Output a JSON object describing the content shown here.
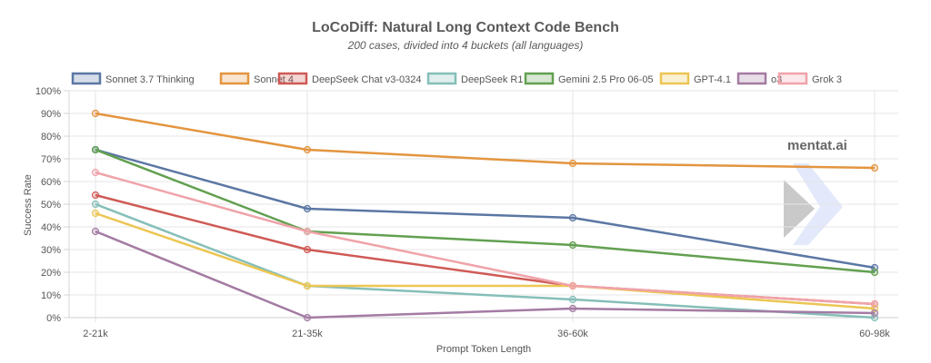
{
  "watermark": {
    "text": "mentat.ai"
  },
  "chart_data": {
    "type": "line",
    "title": "LoCoDiff: Natural Long Context Code Bench",
    "subtitle": "200 cases, divided into 4 buckets (all languages)",
    "xlabel": "Prompt Token Length",
    "ylabel": "Success Rate",
    "categories": [
      "2-21k",
      "21-35k",
      "36-60k",
      "60-98k"
    ],
    "ylim": [
      0,
      100
    ],
    "yticks": [
      "0%",
      "10%",
      "20%",
      "30%",
      "40%",
      "50%",
      "60%",
      "70%",
      "80%",
      "90%",
      "100%"
    ],
    "grid": true,
    "legend_position": "top",
    "series": [
      {
        "name": "Sonnet 3.7 Thinking",
        "color": "#5b77a4",
        "values": [
          74,
          48,
          44,
          22
        ]
      },
      {
        "name": "Sonnet 4",
        "color": "#e3953f",
        "values": [
          90,
          74,
          68,
          66
        ]
      },
      {
        "name": "DeepSeek Chat v3-0324",
        "color": "#cf5a55",
        "values": [
          54,
          30,
          14,
          6
        ]
      },
      {
        "name": "DeepSeek R1",
        "color": "#85bfb8",
        "values": [
          50,
          14,
          8,
          0
        ]
      },
      {
        "name": "Gemini 2.5 Pro 06-05",
        "color": "#62a050",
        "values": [
          74,
          38,
          32,
          20
        ]
      },
      {
        "name": "GPT-4.1",
        "color": "#ecc653",
        "values": [
          46,
          14,
          14,
          4
        ]
      },
      {
        "name": "o3",
        "color": "#a47ba3",
        "values": [
          38,
          0,
          4,
          2
        ]
      },
      {
        "name": "Grok 3",
        "color": "#f0a3aa",
        "values": [
          64,
          38,
          14,
          6
        ]
      }
    ]
  }
}
